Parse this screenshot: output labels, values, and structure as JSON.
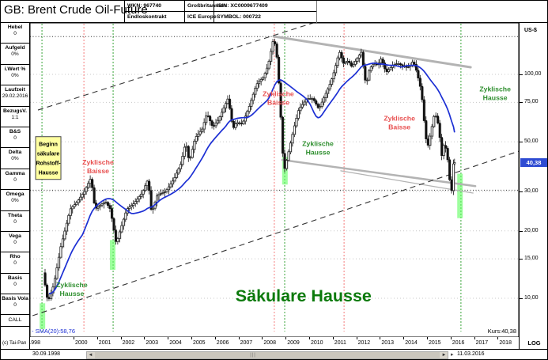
{
  "window_title": "GB: Brent Crude Oil-Future",
  "header": {
    "wkn": "WKN: 967740",
    "contract": "Endloskontrakt",
    "country": "Großbritannien",
    "exchange": "ICE Europe",
    "isin": "ISIN: XC0009677409",
    "symbol": "SYMBOL: 000722"
  },
  "sidebar": {
    "rows": [
      {
        "label": "Hebel",
        "value": "0"
      },
      {
        "label": "Aufgeld",
        "value": "0%"
      },
      {
        "label": "i.Wert %",
        "value": "0%"
      },
      {
        "label": "Laufzeit",
        "value": "29.02.2016"
      },
      {
        "label": "BezugsV.",
        "value": "1:1"
      },
      {
        "label": "B&S",
        "value": "0"
      },
      {
        "label": "Delta",
        "value": "0%"
      },
      {
        "label": "Gamma",
        "value": "0"
      },
      {
        "label": "Omega",
        "value": "0%"
      },
      {
        "label": "Theta",
        "value": "0"
      },
      {
        "label": "Vega",
        "value": "0"
      },
      {
        "label": "Rho",
        "value": "0"
      },
      {
        "label": "Basis",
        "value": "0"
      },
      {
        "label": "Basis Vola",
        "value": "0"
      }
    ],
    "call_label": "CALL",
    "copyright": "(c) Tai-Pan"
  },
  "chart_data": {
    "type": "candlestick",
    "scale": "log",
    "unit_label": "US-$",
    "log_label": "LOG",
    "sma_legend": "- SMA(20):58,76",
    "kurs_label": "Kurs:40,38",
    "start_date": "30.09.1998",
    "end_date": "11.03.2016",
    "price_marker": {
      "value": 40.38,
      "label": "40,38"
    },
    "y_ticks": [
      {
        "v": 100,
        "label": "100,00"
      },
      {
        "v": 75,
        "label": "75,00"
      },
      {
        "v": 50,
        "label": "50,00"
      },
      {
        "v": 30,
        "label": "30,00"
      },
      {
        "v": 20,
        "label": "20,00"
      },
      {
        "v": 15,
        "label": "15,00"
      },
      {
        "v": 10,
        "label": "10,00"
      }
    ],
    "x_years": [
      "1998",
      "2000",
      "2001",
      "2002",
      "2003",
      "2004",
      "2005",
      "2006",
      "2007",
      "2008",
      "2009",
      "2010",
      "2011",
      "2012",
      "2013",
      "2014",
      "2015",
      "2016",
      "2017",
      "2018"
    ],
    "series": {
      "name": "Brent Crude Oil-Future",
      "path": [
        [
          1998.75,
          13
        ],
        [
          1998.95,
          9.6
        ],
        [
          1999.2,
          11.5
        ],
        [
          1999.5,
          17
        ],
        [
          1999.9,
          25
        ],
        [
          2000.2,
          27
        ],
        [
          2000.5,
          30
        ],
        [
          2000.78,
          34.5
        ],
        [
          2000.95,
          25
        ],
        [
          2001.15,
          26
        ],
        [
          2001.4,
          27
        ],
        [
          2001.6,
          25
        ],
        [
          2001.85,
          17.5
        ],
        [
          2001.98,
          19.5
        ],
        [
          2002.3,
          25
        ],
        [
          2002.6,
          26.5
        ],
        [
          2002.95,
          29.5
        ],
        [
          2003.2,
          34
        ],
        [
          2003.35,
          24
        ],
        [
          2003.6,
          29
        ],
        [
          2003.95,
          30
        ],
        [
          2004.3,
          34
        ],
        [
          2004.6,
          40
        ],
        [
          2004.8,
          50
        ],
        [
          2004.95,
          40.5
        ],
        [
          2005.2,
          52
        ],
        [
          2005.5,
          57
        ],
        [
          2005.7,
          67
        ],
        [
          2005.95,
          58
        ],
        [
          2006.2,
          63
        ],
        [
          2006.6,
          78.3
        ],
        [
          2006.8,
          57
        ],
        [
          2006.95,
          61
        ],
        [
          2007.2,
          60
        ],
        [
          2007.5,
          72
        ],
        [
          2007.8,
          90
        ],
        [
          2007.95,
          94
        ],
        [
          2008.1,
          97
        ],
        [
          2008.3,
          110
        ],
        [
          2008.54,
          147
        ],
        [
          2008.7,
          113
        ],
        [
          2008.85,
          60
        ],
        [
          2008.96,
          36.5
        ],
        [
          2009.1,
          42
        ],
        [
          2009.4,
          58
        ],
        [
          2009.6,
          70
        ],
        [
          2009.95,
          78
        ],
        [
          2010.2,
          78
        ],
        [
          2010.45,
          70
        ],
        [
          2010.7,
          80
        ],
        [
          2010.95,
          92
        ],
        [
          2011.1,
          103
        ],
        [
          2011.32,
          126.5
        ],
        [
          2011.5,
          112
        ],
        [
          2011.7,
          115
        ],
        [
          2011.85,
          108
        ],
        [
          2012.1,
          119
        ],
        [
          2012.25,
          125.5
        ],
        [
          2012.45,
          89
        ],
        [
          2012.6,
          106
        ],
        [
          2012.8,
          112
        ],
        [
          2012.95,
          110
        ],
        [
          2013.1,
          118
        ],
        [
          2013.3,
          102
        ],
        [
          2013.6,
          110
        ],
        [
          2013.8,
          112
        ],
        [
          2013.95,
          110
        ],
        [
          2014.1,
          108
        ],
        [
          2014.3,
          108
        ],
        [
          2014.45,
          115
        ],
        [
          2014.6,
          103
        ],
        [
          2014.8,
          84
        ],
        [
          2014.95,
          57
        ],
        [
          2015.05,
          46.5
        ],
        [
          2015.2,
          55
        ],
        [
          2015.37,
          67.8
        ],
        [
          2015.55,
          58
        ],
        [
          2015.65,
          42.5
        ],
        [
          2015.78,
          50
        ],
        [
          2015.9,
          43
        ],
        [
          2015.98,
          36.5
        ],
        [
          2016.05,
          28
        ],
        [
          2016.12,
          33
        ],
        [
          2016.17,
          40.38
        ]
      ]
    },
    "cycle_lines": [
      {
        "t": 1998.66,
        "color": "green"
      },
      {
        "t": 2000.44,
        "color": "red"
      },
      {
        "t": 2001.68,
        "color": "green"
      },
      {
        "t": 2008.52,
        "color": "red"
      },
      {
        "t": 2008.96,
        "color": "green"
      },
      {
        "t": 2011.48,
        "color": "red"
      },
      {
        "t": 2016.44,
        "color": "green"
      }
    ],
    "highlights": [
      {
        "t": 1998.68,
        "hi": 9.5,
        "lo": 7.3
      },
      {
        "t": 2001.66,
        "hi": 18.2,
        "lo": 13.4
      },
      {
        "t": 2008.97,
        "hi": 42.8,
        "lo": 32.2
      },
      {
        "t": 2016.4,
        "hi": 36.0,
        "lo": 22.8
      }
    ],
    "trend_lines_dashed": [
      {
        "t1": 1998.49,
        "p1": 69.3,
        "t2": 2010.17,
        "p2": 169.7
      },
      {
        "t1": 1998.26,
        "p1": 8.36,
        "t2": 2018.9,
        "p2": 45.4
      }
    ],
    "trend_lines_gray": [
      {
        "t1": 2008.49,
        "p1": 147.8,
        "t2": 2016.85,
        "p2": 107.6,
        "w": 3
      },
      {
        "t1": 2008.86,
        "p1": 41.5,
        "t2": 2017.05,
        "p2": 31.7,
        "w": 2.5
      },
      {
        "t1": 2011.34,
        "p1": 37.1,
        "t2": 2016.95,
        "p2": 29.5,
        "w": 1.3
      }
    ],
    "h_dotted_prices": [
      147.5,
      30.4
    ],
    "annotations": [
      {
        "lines": [
          "Zyklische",
          "Baisse"
        ],
        "color": "red",
        "t": 2001.04,
        "p": 38.8
      },
      {
        "lines": [
          "Zyklische",
          "Hausse"
        ],
        "color": "green",
        "t": 1999.93,
        "p": 11.0
      },
      {
        "lines": [
          "Zyklische",
          "Baisse"
        ],
        "color": "red",
        "t": 2008.69,
        "p": 78.3
      },
      {
        "lines": [
          "Zyklische",
          "Hausse"
        ],
        "color": "green",
        "t": 2010.37,
        "p": 46.9
      },
      {
        "lines": [
          "Zyklische",
          "Baisse"
        ],
        "color": "red",
        "t": 2013.83,
        "p": 60.9
      },
      {
        "lines": [
          "Zyklische",
          "Hausse"
        ],
        "color": "green",
        "t": 2017.89,
        "p": 82.2
      },
      {
        "lines": [
          "Säkulare Hausse"
        ],
        "color": "big",
        "t": 2009.76,
        "p": 9.9,
        "big": true
      }
    ],
    "note_box": {
      "lines": [
        "Beginn",
        "säkulare",
        "Rohstoff-",
        "Hausse"
      ],
      "t": 1998.39,
      "p": 52.7
    }
  },
  "colors": {
    "sma": "#1c2fd4",
    "marker_bg": "#2e4bd2",
    "red_label": "#e85050",
    "green_label": "#2f8f2f",
    "big_green": "#0c7a0c",
    "red_line": "#f57d7d",
    "green_line": "#3aa53a",
    "gray_line": "#b3b3b3",
    "grid": "#c8c8c8",
    "note_bg": "#ffffa0"
  }
}
